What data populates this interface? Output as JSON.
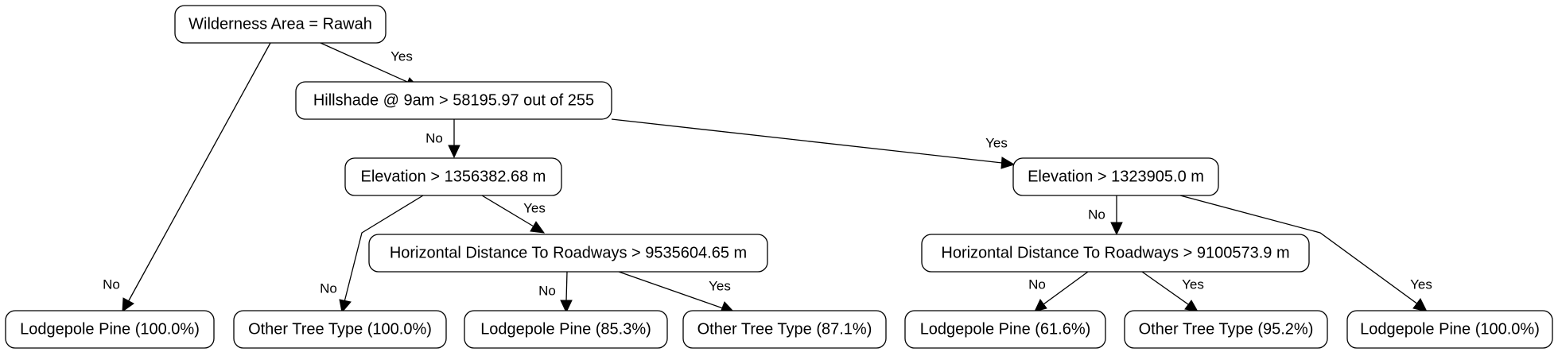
{
  "diagram": {
    "type": "decision-tree",
    "nodes": {
      "root": "Wilderness Area = Rawah",
      "hillshade": "Hillshade @ 9am > 58195.97 out of 255",
      "elev_left": "Elevation > 1356382.68 m",
      "elev_right": "Elevation > 1323905.0 m",
      "hdist_left": "Horizontal Distance To Roadways > 9535604.65 m",
      "hdist_right": "Horizontal Distance To Roadways > 9100573.9 m",
      "leaf1": "Lodgepole Pine (100.0%)",
      "leaf2": "Other Tree Type (100.0%)",
      "leaf3": "Lodgepole Pine (85.3%)",
      "leaf4": "Other Tree Type (87.1%)",
      "leaf5": "Lodgepole Pine (61.6%)",
      "leaf6": "Other Tree Type (95.2%)",
      "leaf7": "Lodgepole Pine (100.0%)"
    },
    "edges": [
      {
        "from": "root",
        "to": "hillshade",
        "label": "Yes"
      },
      {
        "from": "root",
        "to": "leaf1",
        "label": "No"
      },
      {
        "from": "hillshade",
        "to": "elev_left",
        "label": "No"
      },
      {
        "from": "hillshade",
        "to": "elev_right",
        "label": "Yes"
      },
      {
        "from": "elev_left",
        "to": "leaf2",
        "label": "No"
      },
      {
        "from": "elev_left",
        "to": "hdist_left",
        "label": "Yes"
      },
      {
        "from": "hdist_left",
        "to": "leaf3",
        "label": "No"
      },
      {
        "from": "hdist_left",
        "to": "leaf4",
        "label": "Yes"
      },
      {
        "from": "elev_right",
        "to": "hdist_right",
        "label": "No"
      },
      {
        "from": "elev_right",
        "to": "leaf7",
        "label": "Yes"
      },
      {
        "from": "hdist_right",
        "to": "leaf5",
        "label": "No"
      },
      {
        "from": "hdist_right",
        "to": "leaf6",
        "label": "Yes"
      }
    ]
  }
}
